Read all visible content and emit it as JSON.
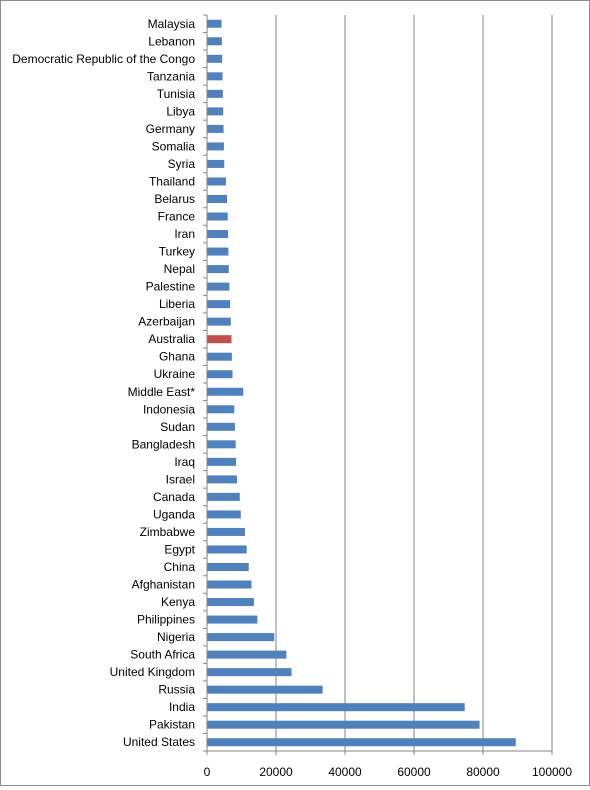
{
  "chart_data": {
    "type": "bar",
    "orientation": "horizontal",
    "categories": [
      "Malaysia",
      "Lebanon",
      "Democratic Republic of the Congo",
      "Tanzania",
      "Tunisia",
      "Libya",
      "Germany",
      "Somalia",
      "Syria",
      "Thailand",
      "Belarus",
      "France",
      "Iran",
      "Turkey",
      "Nepal",
      "Palestine",
      "Liberia",
      "Azerbaijan",
      "Australia",
      "Ghana",
      "Ukraine",
      "Middle East*",
      "Indonesia",
      "Sudan",
      "Bangladesh",
      "Iraq",
      "Israel",
      "Canada",
      "Uganda",
      "Zimbabwe",
      "Egypt",
      "China",
      "Afghanistan",
      "Kenya",
      "Philippines",
      "Nigeria",
      "South Africa",
      "United Kingdom",
      "Russia",
      "India",
      "Pakistan",
      "United States"
    ],
    "values": [
      4200,
      4300,
      4400,
      4500,
      4600,
      4700,
      4800,
      4900,
      5000,
      5500,
      5800,
      6000,
      6100,
      6200,
      6300,
      6500,
      6700,
      6900,
      7100,
      7200,
      7400,
      10500,
      7900,
      8100,
      8300,
      8400,
      8700,
      9500,
      9800,
      11000,
      11500,
      12100,
      12900,
      13600,
      14600,
      19500,
      23000,
      24500,
      33500,
      74700,
      79000,
      89500
    ],
    "highlight_category": "Australia",
    "colors": {
      "bar": "#4f81bd",
      "highlight": "#c0504d",
      "grid": "#868686",
      "axis": "#868686"
    },
    "xlim": [
      0,
      100000
    ],
    "xticks": [
      "0",
      "20000",
      "40000",
      "60000",
      "80000",
      "100000"
    ],
    "grid": true,
    "legend": "none"
  }
}
